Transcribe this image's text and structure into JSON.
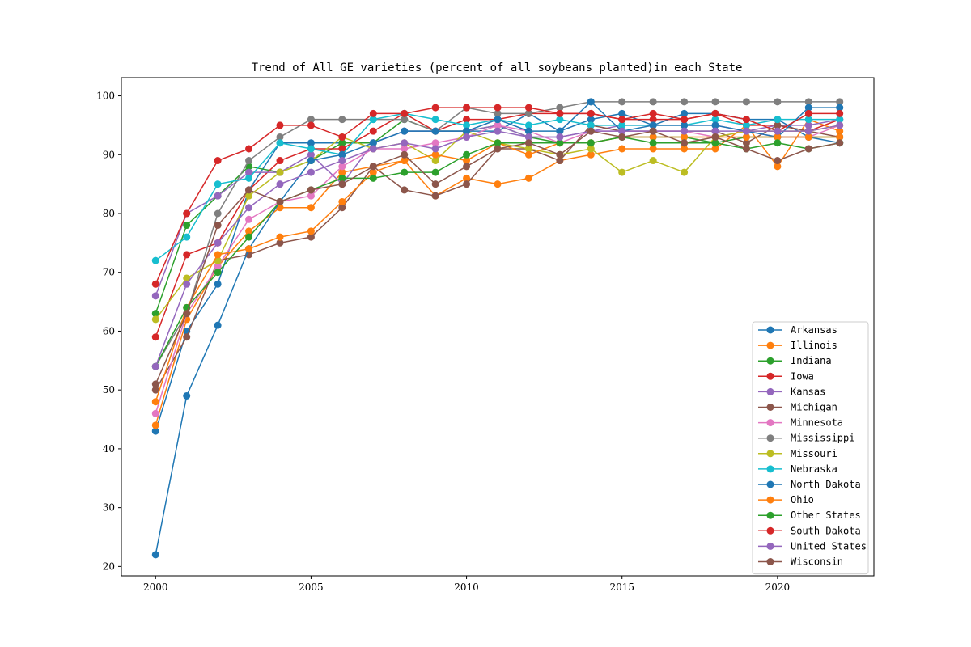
{
  "chart_data": {
    "type": "line",
    "title": "Trend of All GE varieties (percent of all soybeans planted)in each State",
    "xlabel": "",
    "ylabel": "",
    "x": [
      2000,
      2001,
      2002,
      2003,
      2004,
      2005,
      2006,
      2007,
      2008,
      2009,
      2010,
      2011,
      2012,
      2013,
      2014,
      2015,
      2016,
      2017,
      2018,
      2019,
      2020,
      2021,
      2022
    ],
    "xlim": [
      1998.9,
      2023.1
    ],
    "ylim": [
      18.4,
      103.1
    ],
    "xticks": [
      2000,
      2005,
      2010,
      2015,
      2020
    ],
    "yticks": [
      20,
      30,
      40,
      50,
      60,
      70,
      80,
      90,
      100
    ],
    "grid": false,
    "legend_position": "lower-right",
    "series": [
      {
        "name": "Arkansas",
        "color": "#1f77b4",
        "values": [
          43,
          60,
          68,
          84,
          92,
          92,
          92,
          92,
          94,
          94,
          94,
          94,
          97,
          94,
          96,
          97,
          95,
          97,
          97,
          96,
          96,
          93,
          92
        ]
      },
      {
        "name": "Illinois",
        "color": "#ff7f0e",
        "values": [
          44,
          62,
          71,
          77,
          81,
          81,
          87,
          88,
          89,
          83,
          86,
          85,
          86,
          89,
          90,
          91,
          91,
          91,
          91,
          95,
          88,
          96,
          94
        ]
      },
      {
        "name": "Indiana",
        "color": "#2ca02c",
        "values": [
          63,
          78,
          83,
          88,
          87,
          89,
          92,
          92,
          96,
          94,
          94,
          95,
          93,
          92,
          92,
          93,
          93,
          93,
          92,
          93,
          93,
          93,
          93
        ]
      },
      {
        "name": "Iowa",
        "color": "#d62728",
        "values": [
          59,
          73,
          75,
          84,
          89,
          91,
          91,
          94,
          97,
          94,
          96,
          96,
          97,
          97,
          97,
          96,
          96,
          96,
          97,
          95,
          95,
          94,
          96
        ]
      },
      {
        "name": "Kansas",
        "color": "#9467bd",
        "values": [
          66,
          80,
          83,
          87,
          87,
          90,
          85,
          92,
          94,
          94,
          94,
          95,
          93,
          93,
          94,
          95,
          95,
          95,
          95,
          94,
          95,
          95,
          96
        ]
      },
      {
        "name": "Michigan",
        "color": "#8c564b",
        "values": [
          50,
          59,
          72,
          73,
          75,
          76,
          81,
          88,
          84,
          83,
          85,
          91,
          91,
          89,
          95,
          94,
          94,
          94,
          94,
          92,
          95,
          94,
          93
        ]
      },
      {
        "name": "Minnesota",
        "color": "#e377c2",
        "values": [
          46,
          63,
          71,
          79,
          82,
          83,
          88,
          91,
          91,
          92,
          93,
          95,
          94,
          92,
          94,
          94,
          94,
          94,
          93,
          94,
          93,
          93,
          95
        ]
      },
      {
        "name": "Mississippi",
        "color": "#7f7f7f",
        "values": [
          54,
          63,
          80,
          89,
          93,
          96,
          96,
          96,
          96,
          94,
          98,
          97,
          97,
          98,
          99,
          99,
          99,
          99,
          99,
          99,
          99,
          99,
          99
        ]
      },
      {
        "name": "Missouri",
        "color": "#bcbd22",
        "values": [
          62,
          69,
          72,
          83,
          87,
          89,
          93,
          91,
          92,
          89,
          94,
          92,
          91,
          90,
          91,
          87,
          89,
          87,
          93,
          94,
          94,
          94,
          95
        ]
      },
      {
        "name": "Nebraska",
        "color": "#17becf",
        "values": [
          72,
          76,
          85,
          86,
          92,
          91,
          90,
          96,
          97,
          96,
          95,
          96,
          95,
          96,
          95,
          95,
          95,
          95,
          96,
          95,
          96,
          96,
          96
        ]
      },
      {
        "name": "North Dakota",
        "color": "#1f77b4",
        "values": [
          22,
          49,
          61,
          74,
          82,
          89,
          90,
          92,
          94,
          94,
          94,
          96,
          94,
          94,
          99,
          94,
          95,
          95,
          95,
          94,
          93,
          98,
          98
        ]
      },
      {
        "name": "Ohio",
        "color": "#ff7f0e",
        "values": [
          48,
          64,
          73,
          74,
          76,
          77,
          82,
          87,
          89,
          90,
          89,
          92,
          90,
          92,
          92,
          93,
          93,
          93,
          93,
          93,
          93,
          93,
          93
        ]
      },
      {
        "name": "Other States",
        "color": "#2ca02c",
        "values": [
          54,
          64,
          70,
          76,
          82,
          84,
          86,
          86,
          87,
          87,
          90,
          92,
          92,
          92,
          92,
          93,
          92,
          92,
          92,
          91,
          92,
          91,
          92
        ]
      },
      {
        "name": "South Dakota",
        "color": "#d62728",
        "values": [
          68,
          80,
          89,
          91,
          95,
          95,
          93,
          97,
          97,
          98,
          98,
          98,
          98,
          97,
          97,
          96,
          97,
          96,
          97,
          96,
          94,
          97,
          97
        ]
      },
      {
        "name": "United States",
        "color": "#9467bd",
        "values": [
          54,
          68,
          75,
          81,
          85,
          87,
          89,
          91,
          92,
          91,
          93,
          94,
          93,
          93,
          94,
          94,
          94,
          94,
          94,
          94,
          94,
          94,
          95
        ]
      },
      {
        "name": "Wisconsin",
        "color": "#8c564b",
        "values": [
          51,
          63,
          78,
          84,
          82,
          84,
          85,
          88,
          90,
          85,
          88,
          91,
          92,
          90,
          94,
          93,
          94,
          92,
          93,
          91,
          89,
          91,
          92
        ]
      }
    ]
  }
}
